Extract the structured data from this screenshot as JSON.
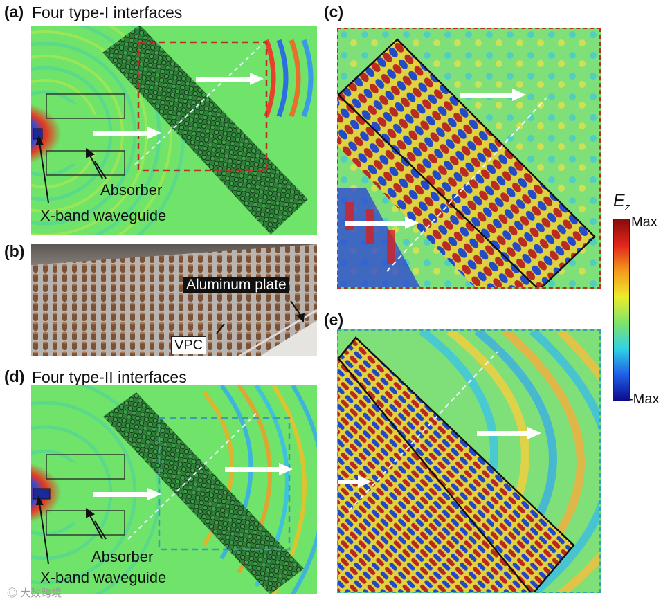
{
  "panels": {
    "a": {
      "label": "(a)",
      "title": "Four type-I interfaces",
      "callout_absorber": "Absorber",
      "callout_waveguide": "X-band waveguide"
    },
    "b": {
      "label": "(b)",
      "callout_plate": "Aluminum plate",
      "callout_vpc": "VPC"
    },
    "c": {
      "label": "(c)"
    },
    "d": {
      "label": "(d)",
      "title": "Four type-II interfaces",
      "callout_absorber": "Absorber",
      "callout_waveguide": "X-band waveguide"
    },
    "e": {
      "label": "(e)"
    }
  },
  "colorbar": {
    "symbol": "E",
    "subscript": "z",
    "max_label": "Max",
    "min_label": "-Max",
    "colors": [
      "#8a0a0a",
      "#e0261b",
      "#f59a1c",
      "#ecec2a",
      "#7fe36b",
      "#2fd2e6",
      "#1f5ee8",
      "#0b0b8a"
    ]
  },
  "colors": {
    "field_green": "#6fe36a",
    "box_red": "#b9302a",
    "box_cyan": "#3a9db0",
    "arrow": "#ffffff"
  },
  "watermark": "大数跨境"
}
